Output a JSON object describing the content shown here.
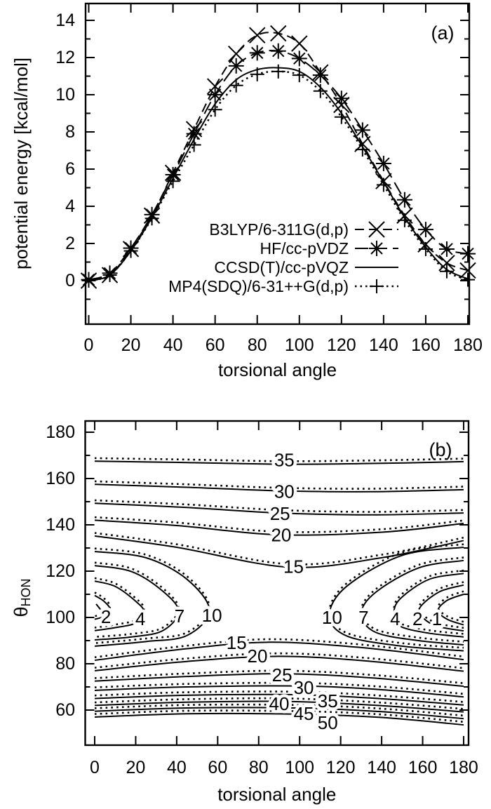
{
  "figure": {
    "background": "#ffffff",
    "ink_color": "#000000"
  },
  "chart_data": [
    {
      "type": "line",
      "panel_label": "(a)",
      "xlabel": "torsional angle",
      "ylabel": "potential energy [kcal/mol]",
      "xlim": [
        -1.8,
        181
      ],
      "ylim": [
        -2.34,
        14.9
      ],
      "xticks": [
        0,
        20,
        40,
        60,
        80,
        100,
        120,
        140,
        160,
        180
      ],
      "yticks": [
        0,
        2,
        4,
        6,
        8,
        10,
        12,
        14
      ],
      "yticks_minor": [
        -1,
        1,
        3,
        5,
        7,
        9,
        11,
        13
      ],
      "grid": false,
      "legend_position": "inside lower-center",
      "x": [
        0,
        10,
        20,
        30,
        40,
        50,
        60,
        70,
        80,
        90,
        100,
        110,
        120,
        130,
        140,
        150,
        160,
        170,
        180
      ],
      "series": [
        {
          "name": "B3LYP/6-311G(d,p)",
          "style": "dashed",
          "marker": "x",
          "values": [
            0.0,
            0.3,
            1.7,
            3.5,
            5.8,
            8.15,
            10.45,
            12.2,
            13.2,
            13.3,
            12.75,
            11.2,
            9.45,
            7.35,
            5.35,
            3.5,
            1.95,
            0.95,
            0.55
          ]
        },
        {
          "name": "HF/cc-pVDZ",
          "style": "longdash",
          "marker": "star",
          "values": [
            0.05,
            0.4,
            1.75,
            3.55,
            5.7,
            7.9,
            10.0,
            11.55,
            12.25,
            12.35,
            11.95,
            11.05,
            9.8,
            8.1,
            6.3,
            4.35,
            2.75,
            1.7,
            1.45
          ]
        },
        {
          "name": "CCSD(T)/cc-pVQZ",
          "style": "solid",
          "marker": "none",
          "values": [
            0.0,
            0.3,
            1.6,
            3.4,
            5.5,
            7.6,
            9.5,
            10.8,
            11.35,
            11.45,
            11.25,
            10.4,
            9.0,
            7.2,
            5.3,
            3.4,
            1.8,
            0.6,
            0.1
          ]
        },
        {
          "name": "MP4(SDQ)/6-31++G(d,p)",
          "style": "dotted",
          "marker": "plus",
          "values": [
            0.0,
            0.3,
            1.6,
            3.35,
            5.35,
            7.3,
            9.2,
            10.5,
            11.1,
            11.25,
            11.05,
            10.2,
            8.8,
            7.05,
            5.15,
            3.25,
            1.7,
            0.5,
            0.05
          ]
        }
      ]
    },
    {
      "type": "contour",
      "panel_label": "(b)",
      "xlabel": "torsional angle",
      "ylabel": {
        "base": "θ",
        "sub": "HON"
      },
      "xlim": [
        -4.8,
        182.4
      ],
      "ylim": [
        44.8,
        184.8
      ],
      "xticks": [
        0,
        20,
        40,
        60,
        80,
        100,
        120,
        140,
        160,
        180
      ],
      "yticks": [
        60,
        80,
        100,
        120,
        140,
        160,
        180
      ],
      "yticks_minor": [
        70,
        90,
        110,
        130,
        150,
        170
      ],
      "grid": false,
      "levels_labeled": [
        1,
        2,
        4,
        7,
        10,
        15,
        20,
        25,
        30,
        35,
        40,
        45,
        50
      ],
      "dotted_twin_offset_theta": 1.3,
      "contours": [
        {
          "level": 35,
          "branch": "upper",
          "pts": [
            [
              0,
              167.5
            ],
            [
              45,
              166.9
            ],
            [
              90,
              166.2
            ],
            [
              135,
              166.5
            ],
            [
              180,
              167.3
            ]
          ]
        },
        {
          "level": 30,
          "branch": "upper",
          "pts": [
            [
              0,
              157.5
            ],
            [
              45,
              156.2
            ],
            [
              90,
              154.7
            ],
            [
              135,
              154.3
            ],
            [
              180,
              155.2
            ]
          ]
        },
        {
          "level": 25,
          "branch": "upper",
          "pts": [
            [
              0,
              149.3
            ],
            [
              45,
              147.5
            ],
            [
              90,
              145.1
            ],
            [
              135,
              144.3
            ],
            [
              180,
              145.1
            ]
          ]
        },
        {
          "level": 20,
          "branch": "upper",
          "pts": [
            [
              0,
              142.0
            ],
            [
              40,
              139.7
            ],
            [
              90,
              135.7
            ],
            [
              140,
              136.8
            ],
            [
              180,
              140.6
            ]
          ]
        },
        {
          "level": 15,
          "branch": "upper",
          "pts": [
            [
              0,
              135.2
            ],
            [
              40,
              130.3
            ],
            [
              95,
              121.7
            ],
            [
              140,
              125.8
            ],
            [
              180,
              133.2
            ]
          ]
        },
        {
          "level": 10,
          "branch": "left-arc",
          "pts": [
            [
              0,
              128.5
            ],
            [
              25,
              125.8
            ],
            [
              45,
              116.5
            ],
            [
              56,
              103
            ],
            [
              45,
              92.2
            ],
            [
              25,
              89.6
            ],
            [
              0,
              87.6
            ]
          ]
        },
        {
          "level": 7,
          "branch": "left-arc",
          "pts": [
            [
              0,
              122.4
            ],
            [
              18,
              119.8
            ],
            [
              33,
              111.5
            ],
            [
              41,
              102.5
            ],
            [
              33,
              94.2
            ],
            [
              18,
              91.6
            ],
            [
              0,
              90.3
            ]
          ]
        },
        {
          "level": 4,
          "branch": "left-arc",
          "pts": [
            [
              0,
              115.7
            ],
            [
              10,
              113.4
            ],
            [
              20,
              107.0
            ],
            [
              24,
              102.5
            ],
            [
              20,
              97.6
            ],
            [
              10,
              95.6
            ],
            [
              0,
              94.3
            ]
          ]
        },
        {
          "level": 2,
          "branch": "left-arc",
          "pts": [
            [
              0,
              109.5
            ],
            [
              4.5,
              107.0
            ],
            [
              7.5,
              103.5
            ],
            [
              4.5,
              100.5
            ],
            [
              0,
              99.2
            ]
          ]
        },
        {
          "level": 2,
          "branch": "leader",
          "twin": false,
          "pts": [
            [
              0.7,
              105.8
            ],
            [
              4.8,
              101.3
            ]
          ]
        },
        {
          "level": 10,
          "branch": "right-arc",
          "pts": [
            [
              180,
              130.3
            ],
            [
              150,
              126.8
            ],
            [
              123,
              113.5
            ],
            [
              114.5,
              101
            ],
            [
              123,
              92
            ],
            [
              150,
              87.6
            ],
            [
              180,
              85.6
            ]
          ]
        },
        {
          "level": 7,
          "branch": "right-arc",
          "pts": [
            [
              180,
              124.6
            ],
            [
              158,
              121.4
            ],
            [
              137,
              110.8
            ],
            [
              130,
              101.5
            ],
            [
              137,
              93.6
            ],
            [
              158,
              90
            ],
            [
              180,
              88.2
            ]
          ]
        },
        {
          "level": 4,
          "branch": "right-arc",
          "pts": [
            [
              180,
              119.0
            ],
            [
              163,
              116.4
            ],
            [
              149,
              108.0
            ],
            [
              146,
              101.5
            ],
            [
              149,
              96.2
            ],
            [
              163,
              93.2
            ],
            [
              180,
              91.6
            ]
          ]
        },
        {
          "level": 2,
          "branch": "right-arc",
          "pts": [
            [
              180,
              114.0
            ],
            [
              168,
              111.0
            ],
            [
              158.5,
              104.0
            ],
            [
              161,
              99.2
            ],
            [
              168,
              96.0
            ],
            [
              180,
              94.2
            ]
          ]
        },
        {
          "level": 1,
          "branch": "right-arc",
          "pts": [
            [
              180,
              110.0
            ],
            [
              172,
              107.4
            ],
            [
              167.5,
              103.0
            ],
            [
              172,
              99.2
            ],
            [
              180,
              96.8
            ]
          ]
        },
        {
          "level": 15,
          "branch": "lower",
          "pts": [
            [
              0,
              81.5
            ],
            [
              45,
              86.5
            ],
            [
              85,
              89.3
            ],
            [
              130,
              87.0
            ],
            [
              180,
              81.8
            ]
          ]
        },
        {
          "level": 20,
          "branch": "lower",
          "pts": [
            [
              0,
              77.0
            ],
            [
              45,
              81.0
            ],
            [
              88,
              83.2
            ],
            [
              130,
              81.4
            ],
            [
              180,
              76.8
            ]
          ]
        },
        {
          "level": 25,
          "branch": "lower",
          "pts": [
            [
              0,
              72.5
            ],
            [
              45,
              74.5
            ],
            [
              92,
              75.7
            ],
            [
              135,
              73.9
            ],
            [
              180,
              70.3
            ]
          ]
        },
        {
          "level": 30,
          "branch": "lower",
          "pts": [
            [
              0,
              68.5
            ],
            [
              45,
              70.0
            ],
            [
              100,
              70.4
            ],
            [
              140,
              68.8
            ],
            [
              180,
              65.7
            ]
          ]
        },
        {
          "level": 35,
          "branch": "lower",
          "pts": [
            [
              0,
              65.0
            ],
            [
              45,
              66.4
            ],
            [
              100,
              66.6
            ],
            [
              140,
              64.9
            ],
            [
              180,
              62.2
            ]
          ]
        },
        {
          "level": 40,
          "branch": "lower",
          "pts": [
            [
              0,
              62.0
            ],
            [
              45,
              63.4
            ],
            [
              95,
              63.7
            ],
            [
              140,
              61.9
            ],
            [
              180,
              59.2
            ]
          ]
        },
        {
          "level": 45,
          "branch": "lower",
          "pts": [
            [
              0,
              59.5
            ],
            [
              45,
              60.9
            ],
            [
              98,
              60.9
            ],
            [
              140,
              59.3
            ],
            [
              180,
              56.3
            ]
          ]
        },
        {
          "level": 50,
          "branch": "lower",
          "pts": [
            [
              0,
              57.0
            ],
            [
              45,
              58.4
            ],
            [
              100,
              58.2
            ],
            [
              140,
              56.8
            ],
            [
              180,
              53.6
            ]
          ]
        }
      ],
      "contour_labels": [
        {
          "text": "35",
          "x": 92.5,
          "y": 168.0
        },
        {
          "text": "30",
          "x": 92.5,
          "y": 154.4
        },
        {
          "text": "25",
          "x": 90.4,
          "y": 144.9
        },
        {
          "text": "20",
          "x": 91.0,
          "y": 135.6
        },
        {
          "text": "15",
          "x": 97.0,
          "y": 122.0
        },
        {
          "text": "2",
          "x": 5.5,
          "y": 100.3
        },
        {
          "text": "4",
          "x": 22.3,
          "y": 99.4
        },
        {
          "text": "7",
          "x": 41.4,
          "y": 100.6
        },
        {
          "text": "10",
          "x": 57.2,
          "y": 100.9
        },
        {
          "text": "10",
          "x": 115.8,
          "y": 100.0
        },
        {
          "text": "7",
          "x": 131.2,
          "y": 100.0
        },
        {
          "text": "4",
          "x": 146.6,
          "y": 99.4
        },
        {
          "text": "2",
          "x": 157.5,
          "y": 99.4
        },
        {
          "text": "1",
          "x": 167.0,
          "y": 99.4
        },
        {
          "text": "15",
          "x": 69.2,
          "y": 89.1
        },
        {
          "text": "20",
          "x": 79.4,
          "y": 83.3
        },
        {
          "text": "25",
          "x": 91.4,
          "y": 75.2
        },
        {
          "text": "30",
          "x": 102.0,
          "y": 69.7
        },
        {
          "text": "35",
          "x": 113.7,
          "y": 63.9
        },
        {
          "text": "40",
          "x": 90.0,
          "y": 62.7
        },
        {
          "text": "45",
          "x": 102.0,
          "y": 58.5
        },
        {
          "text": "50",
          "x": 113.7,
          "y": 54.6
        }
      ]
    }
  ]
}
